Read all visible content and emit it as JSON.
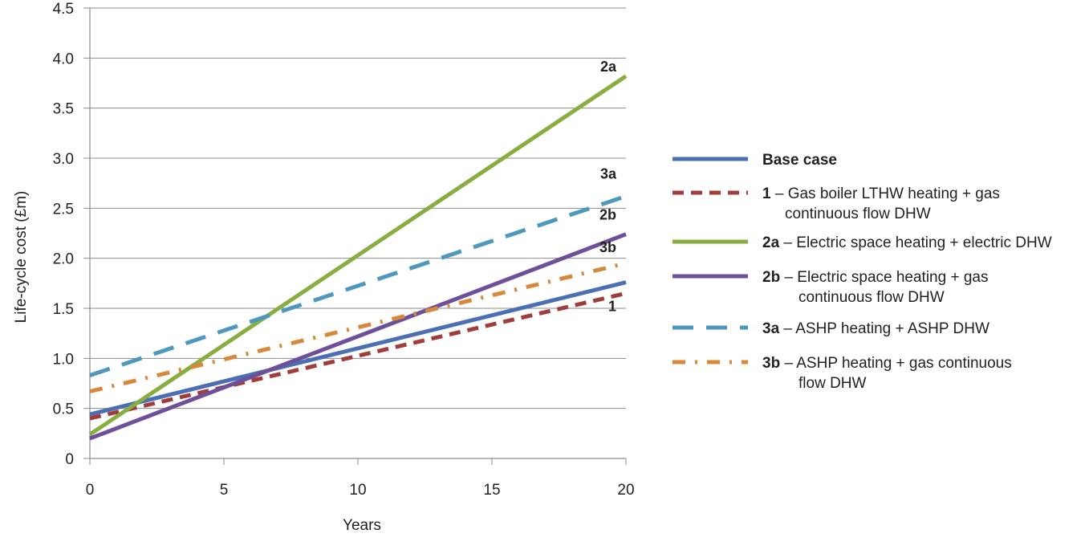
{
  "chart_data": {
    "type": "line",
    "xlabel": "Years",
    "ylabel": "Life-cycle cost  (£m)",
    "xlim": [
      0,
      20
    ],
    "ylim": [
      0,
      4.5
    ],
    "x_ticks": [
      "0",
      "5",
      "10",
      "15",
      "20"
    ],
    "y_ticks": [
      "0",
      "0.5",
      "1.0",
      "1.5",
      "2.0",
      "2.5",
      "3.0",
      "3.5",
      "4.0",
      "4.5"
    ],
    "grid": "horizontal",
    "legend_position": "right",
    "x": [
      0,
      20
    ],
    "series": [
      {
        "key": "base",
        "code": "Base case",
        "desc": "",
        "desc2": "",
        "end_label": "",
        "color": "#4a6fb5",
        "style": "solid",
        "values": [
          0.44,
          1.76
        ]
      },
      {
        "key": "s1",
        "code": "1",
        "desc": " – Gas boiler LTHW heating + gas",
        "desc2": "continuous flow DHW",
        "end_label": "1",
        "color": "#a03d3a",
        "style": "dash",
        "values": [
          0.4,
          1.65
        ]
      },
      {
        "key": "s2a",
        "code": "2a",
        "desc": " – Electric space heating + electric DHW",
        "desc2": "",
        "end_label": "2a",
        "color": "#88ad40",
        "style": "solid",
        "values": [
          0.24,
          3.82
        ]
      },
      {
        "key": "s2b",
        "code": "2b",
        "desc": " – Electric space heating + gas",
        "desc2": "continuous flow DHW",
        "end_label": "2b",
        "color": "#6e4f99",
        "style": "solid",
        "values": [
          0.2,
          2.24
        ]
      },
      {
        "key": "s3a",
        "code": "3a",
        "desc": " – ASHP heating + ASHP DHW",
        "desc2": "",
        "end_label": "3a",
        "color": "#4d99bd",
        "style": "longdash",
        "values": [
          0.83,
          2.62
        ]
      },
      {
        "key": "s3b",
        "code": "3b",
        "desc": " – ASHP heating + gas continuous",
        "desc2": "flow DHW",
        "end_label": "3b",
        "color": "#d9873a",
        "style": "dashdot",
        "values": [
          0.67,
          1.95
        ]
      }
    ]
  }
}
